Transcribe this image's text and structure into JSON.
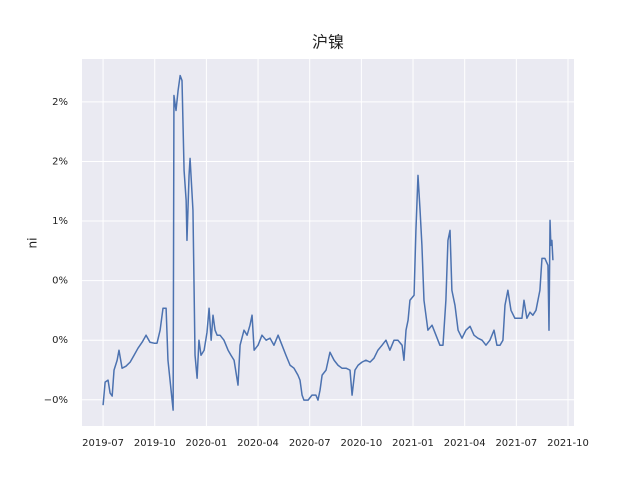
{
  "chart_data": {
    "type": "line",
    "title": "沪镍",
    "ylabel": "ni",
    "color": "#4c72b0",
    "grid": true,
    "xlim": [
      2019.398,
      2021.779
    ],
    "ylim": [
      -0.72,
      2.36
    ],
    "xticks": [
      {
        "value": 2019.5,
        "label": "2019-07"
      },
      {
        "value": 2019.75,
        "label": "2019-10"
      },
      {
        "value": 2020.0,
        "label": "2020-01"
      },
      {
        "value": 2020.25,
        "label": "2020-04"
      },
      {
        "value": 2020.5,
        "label": "2020-07"
      },
      {
        "value": 2020.75,
        "label": "2020-10"
      },
      {
        "value": 2021.0,
        "label": "2021-01"
      },
      {
        "value": 2021.25,
        "label": "2021-04"
      },
      {
        "value": 2021.5,
        "label": "2021-07"
      },
      {
        "value": 2021.75,
        "label": "2021-10"
      }
    ],
    "yticks": [
      {
        "value": -0.5,
        "label": "−0%"
      },
      {
        "value": 0,
        "label": "0%"
      },
      {
        "value": 0.5,
        "label": "0%"
      },
      {
        "value": 1,
        "label": "1%"
      },
      {
        "value": 1.5,
        "label": "2%"
      },
      {
        "value": 2,
        "label": "2%"
      }
    ],
    "x": [
      2019.5,
      2019.51,
      2019.524,
      2019.534,
      2019.544,
      2019.553,
      2019.568,
      2019.577,
      2019.592,
      2019.611,
      2019.631,
      2019.65,
      2019.669,
      2019.689,
      2019.708,
      2019.727,
      2019.747,
      2019.761,
      2019.776,
      2019.79,
      2019.805,
      2019.814,
      2019.829,
      2019.839,
      2019.843,
      2019.853,
      2019.863,
      2019.873,
      2019.882,
      2019.892,
      2019.902,
      2019.906,
      2019.916,
      2019.921,
      2019.935,
      2019.945,
      2019.955,
      2019.964,
      2019.974,
      2019.989,
      2020.003,
      2020.013,
      2020.023,
      2020.032,
      2020.042,
      2020.052,
      2020.066,
      2020.085,
      2020.105,
      2020.119,
      2020.134,
      2020.153,
      2020.163,
      2020.182,
      2020.197,
      2020.211,
      2020.221,
      2020.231,
      2020.25,
      2020.269,
      2020.289,
      2020.308,
      2020.327,
      2020.347,
      2020.366,
      2020.385,
      2020.405,
      2020.424,
      2020.443,
      2020.453,
      2020.463,
      2020.472,
      2020.492,
      2020.511,
      2020.53,
      2020.54,
      2020.55,
      2020.56,
      2020.579,
      2020.598,
      2020.618,
      2020.637,
      2020.656,
      2020.676,
      2020.695,
      2020.705,
      2020.719,
      2020.734,
      2020.753,
      2020.772,
      2020.792,
      2020.811,
      2020.83,
      2020.85,
      2020.869,
      2020.888,
      2020.908,
      2020.927,
      2020.947,
      2020.956,
      2020.966,
      2020.976,
      2020.985,
      2021.005,
      2021.014,
      2021.024,
      2021.034,
      2021.043,
      2021.053,
      2021.072,
      2021.092,
      2021.111,
      2021.13,
      2021.145,
      2021.159,
      2021.169,
      2021.179,
      2021.188,
      2021.203,
      2021.218,
      2021.237,
      2021.256,
      2021.276,
      2021.295,
      2021.314,
      2021.334,
      2021.353,
      2021.372,
      2021.392,
      2021.406,
      2021.421,
      2021.435,
      2021.445,
      2021.459,
      2021.474,
      2021.493,
      2021.513,
      2021.527,
      2021.537,
      2021.551,
      2021.566,
      2021.58,
      2021.595,
      2021.614,
      2021.624,
      2021.638,
      2021.653,
      2021.658,
      2021.663,
      2021.667,
      2021.672,
      2021.677
    ],
    "values": [
      -0.545,
      -0.352,
      -0.335,
      -0.444,
      -0.469,
      -0.251,
      -0.168,
      -0.084,
      -0.235,
      -0.218,
      -0.184,
      -0.126,
      -0.067,
      -0.017,
      0.042,
      -0.017,
      -0.025,
      -0.025,
      0.084,
      0.268,
      0.268,
      -0.168,
      -0.419,
      -0.587,
      2.054,
      1.928,
      2.096,
      2.221,
      2.179,
      1.425,
      1.173,
      0.838,
      1.383,
      1.526,
      1.09,
      -0.126,
      -0.319,
      0,
      -0.126,
      -0.084,
      0.067,
      0.268,
      0,
      0.21,
      0.084,
      0.042,
      0.042,
      0,
      -0.084,
      -0.126,
      -0.168,
      -0.377,
      -0.042,
      0.084,
      0.042,
      0.126,
      0.21,
      -0.084,
      -0.042,
      0.042,
      0,
      0.017,
      -0.042,
      0.042,
      -0.042,
      -0.126,
      -0.21,
      -0.235,
      -0.293,
      -0.335,
      -0.461,
      -0.503,
      -0.503,
      -0.461,
      -0.461,
      -0.503,
      -0.419,
      -0.293,
      -0.251,
      -0.101,
      -0.168,
      -0.21,
      -0.235,
      -0.235,
      -0.251,
      -0.461,
      -0.251,
      -0.21,
      -0.184,
      -0.168,
      -0.184,
      -0.151,
      -0.084,
      -0.042,
      0,
      -0.084,
      0,
      0,
      -0.042,
      -0.168,
      0.084,
      0.168,
      0.335,
      0.377,
      0.922,
      1.383,
      1.09,
      0.796,
      0.335,
      0.084,
      0.126,
      0.042,
      -0.042,
      -0.042,
      0.335,
      0.838,
      0.922,
      0.419,
      0.293,
      0.084,
      0.017,
      0.084,
      0.117,
      0.042,
      0.017,
      0,
      -0.042,
      0,
      0.084,
      -0.042,
      -0.042,
      0,
      0.293,
      0.419,
      0.251,
      0.184,
      0.184,
      0.184,
      0.335,
      0.184,
      0.235,
      0.21,
      0.251,
      0.419,
      0.687,
      0.687,
      0.629,
      0.084,
      1.006,
      0.796,
      0.838,
      0.671
    ]
  }
}
